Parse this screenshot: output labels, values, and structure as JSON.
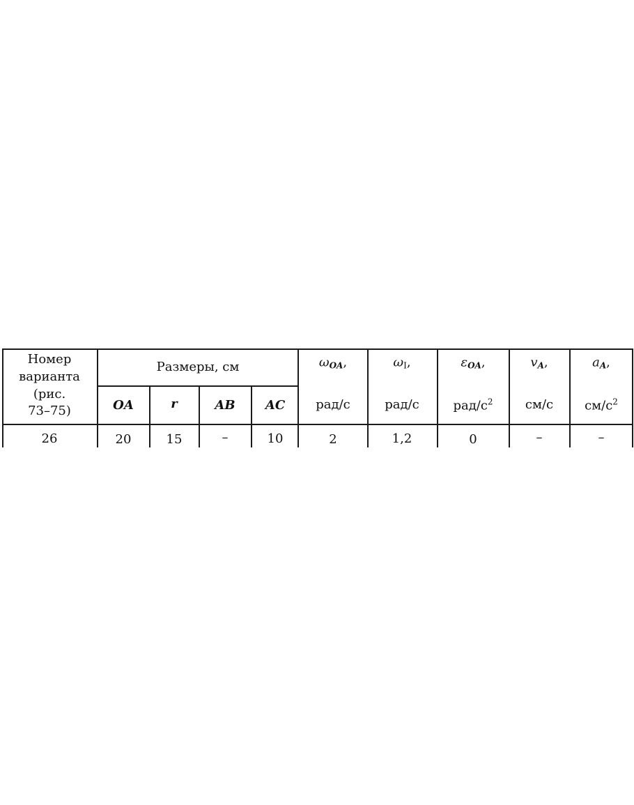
{
  "table": {
    "variant_header": [
      "Номер",
      "варианта",
      "(рис.",
      "73–75)"
    ],
    "sizes_group": "Размеры, см",
    "size_columns": [
      {
        "symbol": "OA"
      },
      {
        "symbol": "r"
      },
      {
        "symbol": "AB"
      },
      {
        "symbol": "AC"
      }
    ],
    "quantity_columns": [
      {
        "symbol": "ω",
        "sub": "OA",
        "unit": "рад/с",
        "unit_sup": ""
      },
      {
        "symbol": "ω",
        "sub": "I",
        "unit": "рад/с",
        "unit_sup": ""
      },
      {
        "symbol": "ε",
        "sub": "OA",
        "unit": "рад/с",
        "unit_sup": "2"
      },
      {
        "symbol": "v",
        "sub": "A",
        "unit": "см/с",
        "unit_sup": ""
      },
      {
        "symbol": "a",
        "sub": "A",
        "unit": "см/с",
        "unit_sup": "2"
      }
    ],
    "rows": [
      [
        "26",
        "20",
        "15",
        "–",
        "10",
        "2",
        "1,2",
        "0",
        "–",
        "–"
      ]
    ]
  }
}
